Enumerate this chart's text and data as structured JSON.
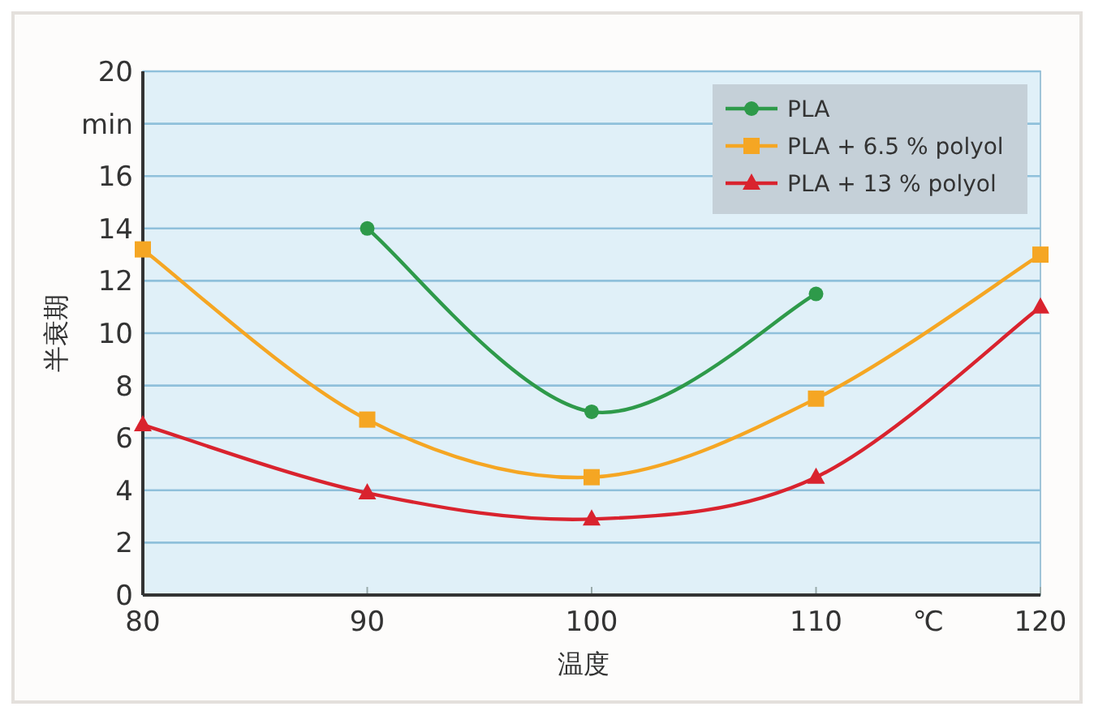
{
  "chart_data": {
    "type": "line",
    "xlabel": "温度",
    "ylabel": "半衰期",
    "x": [
      80,
      90,
      100,
      110,
      120
    ],
    "xlim": [
      80,
      120
    ],
    "xticks": [
      80,
      90,
      100,
      110,
      {
        "value": 115,
        "label": "℃"
      },
      120
    ],
    "ylim": [
      0,
      20
    ],
    "yticks": [
      0,
      2,
      4,
      6,
      8,
      10,
      12,
      14,
      16,
      {
        "value": 18,
        "label": "min"
      },
      20
    ],
    "grid": "y",
    "legend": "top right",
    "line_style": "solid",
    "series": [
      {
        "name": "PLA",
        "color": "#2e9a4a",
        "marker": "circle",
        "values": [
          null,
          14,
          7,
          11.5,
          null
        ]
      },
      {
        "name": "PLA + 6.5 % polyol",
        "color": "#f5a623",
        "marker": "square",
        "values": [
          13.2,
          6.7,
          4.5,
          7.5,
          13
        ]
      },
      {
        "name": "PLA + 13 % polyol",
        "color": "#d9232e",
        "marker": "triangle",
        "values": [
          6.5,
          3.9,
          2.9,
          4.5,
          11
        ]
      }
    ]
  }
}
